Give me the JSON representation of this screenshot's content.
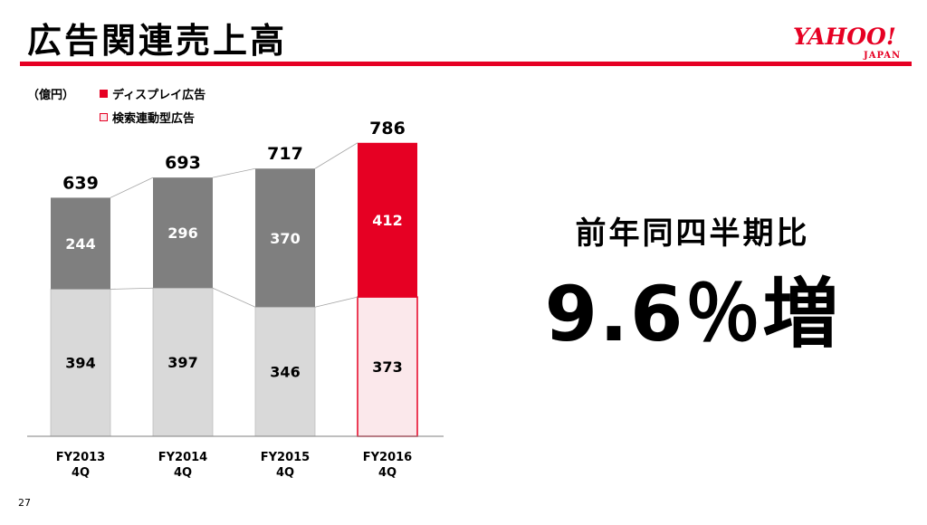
{
  "header": {
    "title": "広告関連売上高",
    "logo_main": "YAHOO!",
    "logo_sub": "JAPAN"
  },
  "unit_label": "（億円）",
  "legend": [
    {
      "name": "ディスプレイ広告",
      "color": "#e60023"
    },
    {
      "name": "検索連動型広告",
      "color": "#fbe8eb"
    }
  ],
  "summary": {
    "label": "前年同四半期比",
    "value": "9.6％増"
  },
  "page_number": "27",
  "colors": {
    "accent": "#e60023",
    "display_past": "#7f7f7f",
    "search_past": "#d9d9d9",
    "display_current": "#e60023",
    "search_current": "#fbe8eb"
  },
  "chart_data": {
    "type": "bar",
    "stacked": true,
    "categories": [
      [
        "FY2013",
        "4Q"
      ],
      [
        "FY2014",
        "4Q"
      ],
      [
        "FY2015",
        "4Q"
      ],
      [
        "FY2016",
        "4Q"
      ]
    ],
    "totals": [
      639,
      693,
      717,
      786
    ],
    "series": [
      {
        "name": "検索連動型広告",
        "values": [
          394,
          397,
          346,
          373
        ]
      },
      {
        "name": "ディスプレイ広告",
        "values": [
          244,
          296,
          370,
          412
        ]
      }
    ],
    "ylim": [
      0,
      800
    ],
    "grid": false,
    "legend_position": "top-left"
  }
}
